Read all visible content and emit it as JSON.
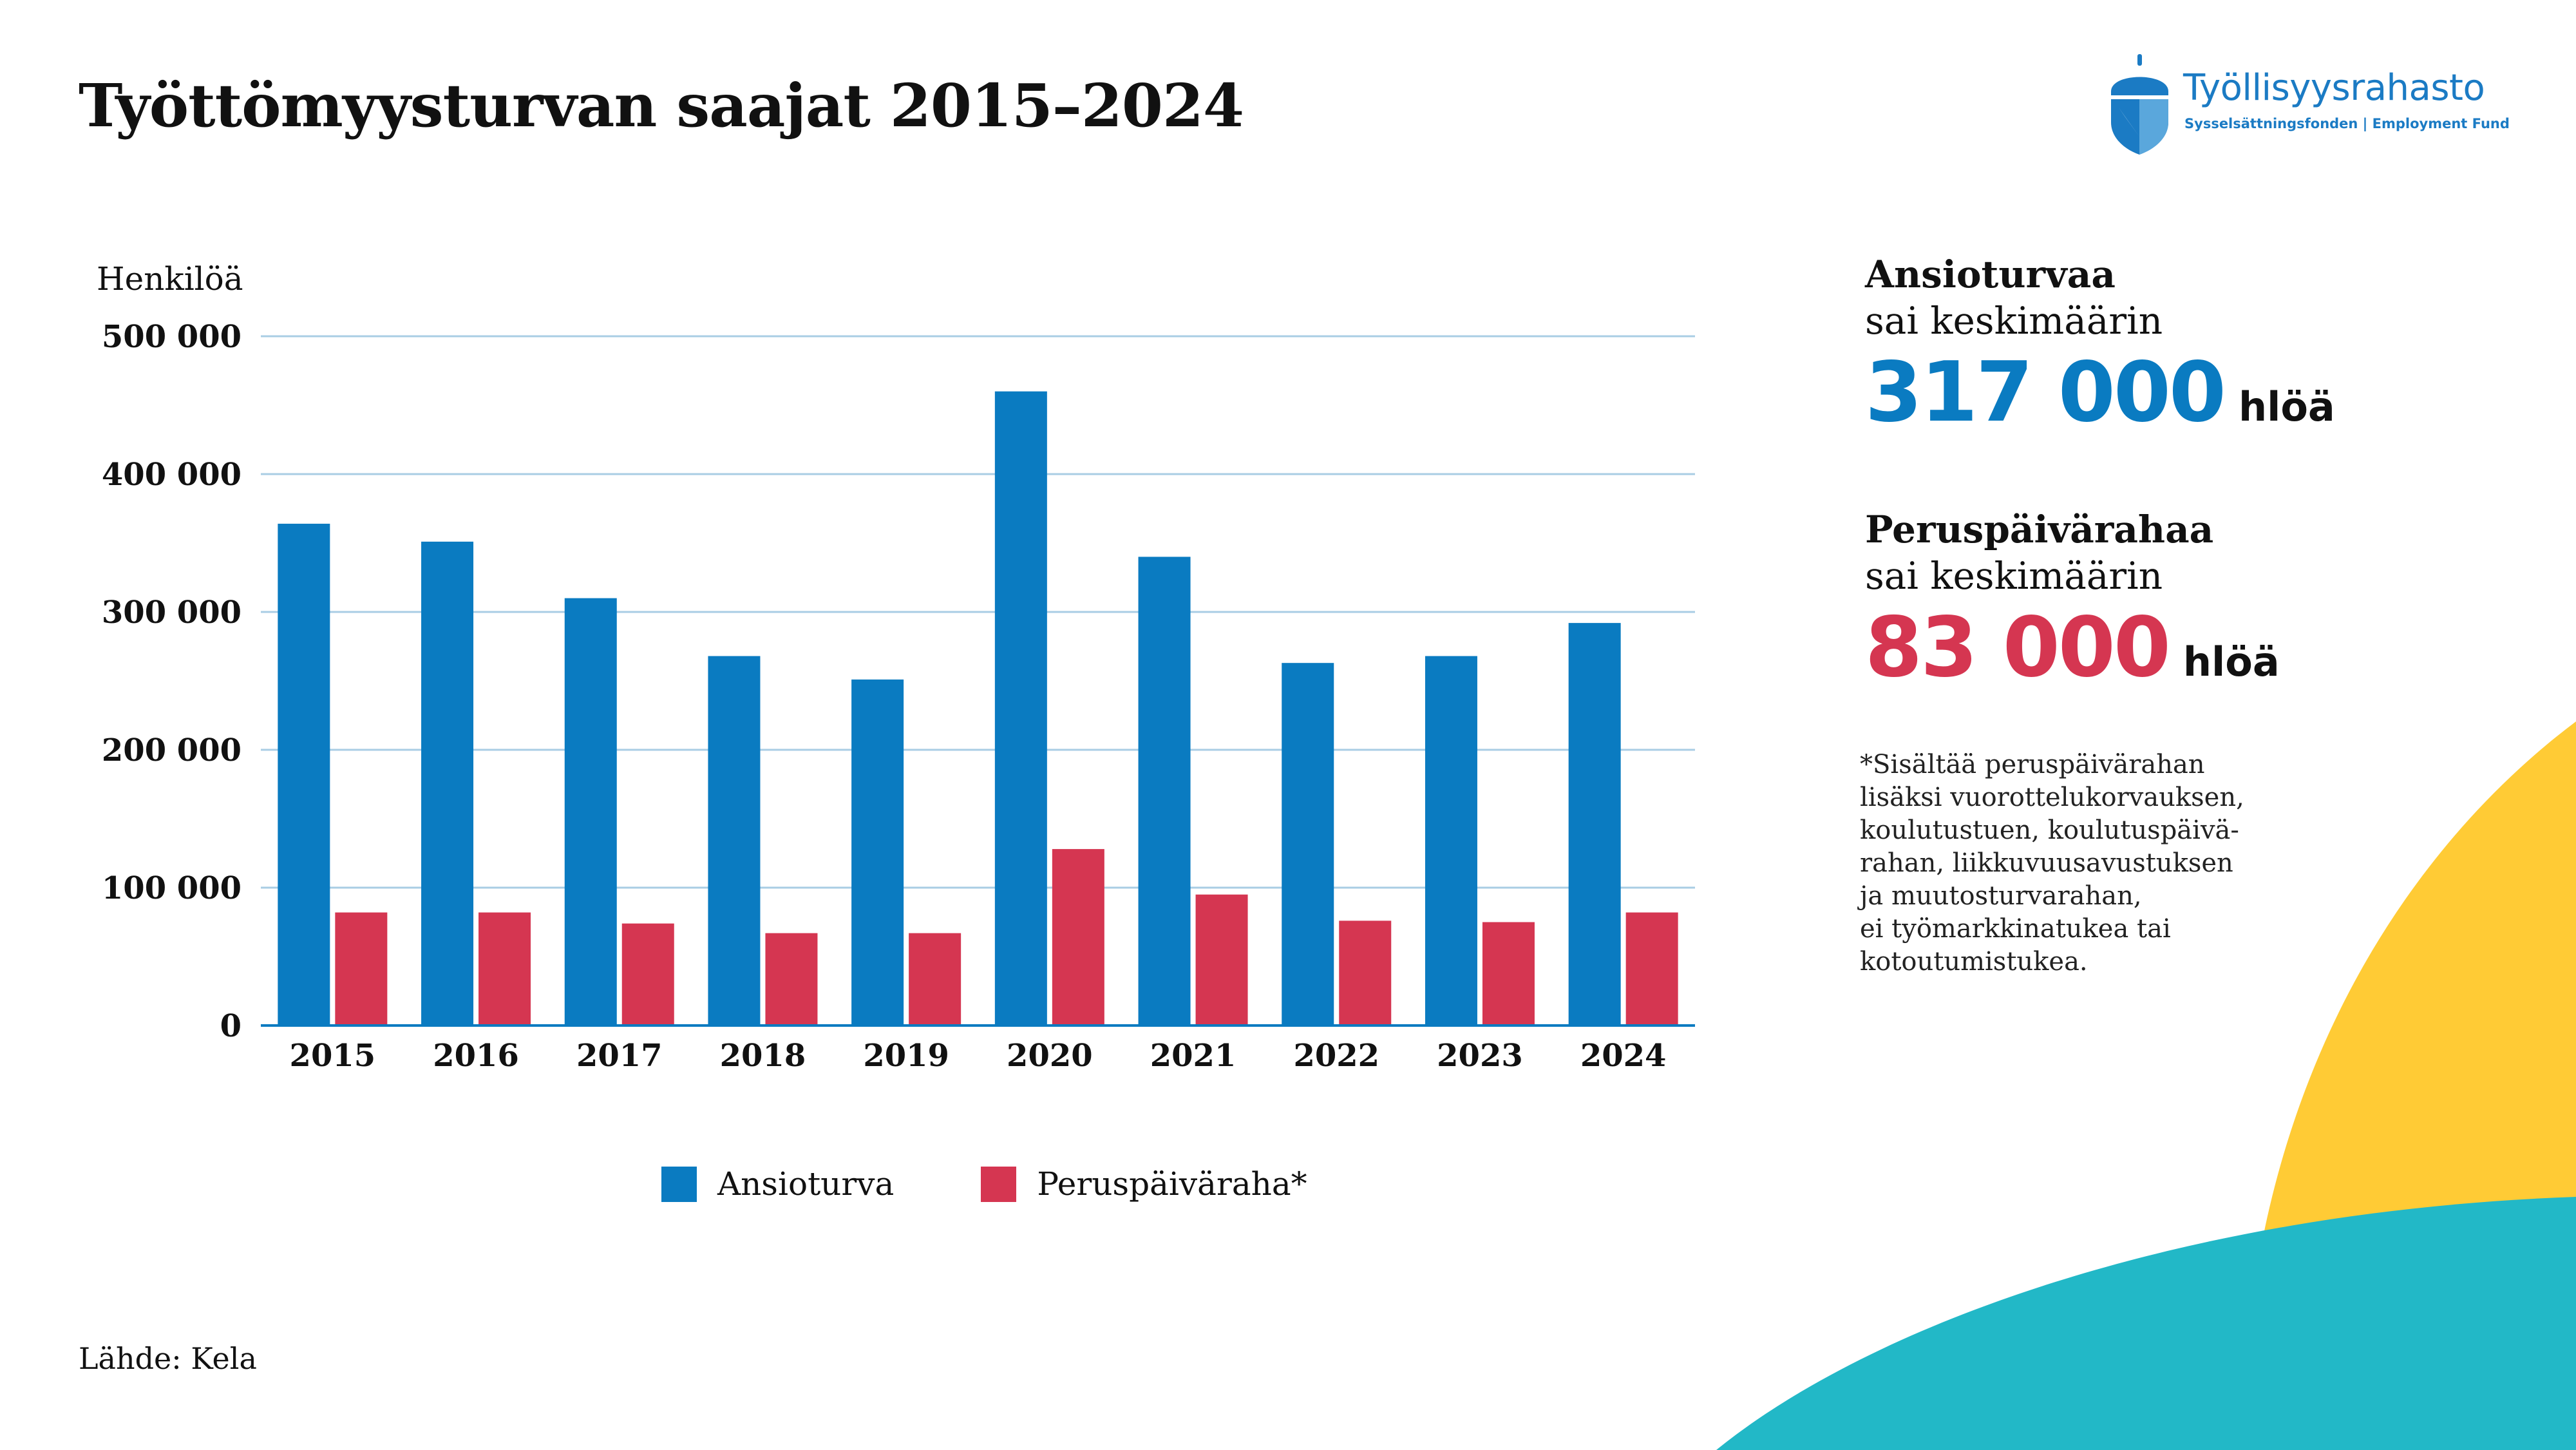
{
  "title": "Työttömyysturvan saajat 2015–2024",
  "logo": {
    "name": "Työllisyysrahasto",
    "subtitle": "Sysselsättningsfonden | Employment Fund",
    "icon": "acorn-shield-icon",
    "color": "#1b7bc4"
  },
  "colors": {
    "ansioturva": "#0a7bc1",
    "peruspaivaraha": "#d53651",
    "gridline": "#a9cde4",
    "yellow": "#ffcb35",
    "teal": "#22b8c7"
  },
  "chart_data": {
    "type": "bar",
    "ylabel": "Henkilöä",
    "categories": [
      "2015",
      "2016",
      "2017",
      "2018",
      "2019",
      "2020",
      "2021",
      "2022",
      "2023",
      "2024"
    ],
    "series": [
      {
        "name": "Ansioturva",
        "values": [
          364000,
          351000,
          310000,
          268000,
          251000,
          460000,
          340000,
          263000,
          268000,
          292000
        ]
      },
      {
        "name": "Peruspäiväraha*",
        "values": [
          82000,
          82000,
          74000,
          67000,
          67000,
          128000,
          95000,
          76000,
          75000,
          82000
        ]
      }
    ],
    "ylim": [
      0,
      500000
    ],
    "yticks": [
      0,
      100000,
      200000,
      300000,
      400000,
      500000
    ],
    "ytick_labels": [
      "0",
      "100 000",
      "200 000",
      "300 000",
      "400 000",
      "500 000"
    ],
    "grid": true,
    "legend_position": "bottom"
  },
  "stats": [
    {
      "title": "Ansioturvaa",
      "subtitle": "sai keskimäärin",
      "value": "317 000",
      "unit": "hlöä"
    },
    {
      "title": "Peruspäivärahaa",
      "subtitle": "sai keskimäärin",
      "value": "83 000",
      "unit": "hlöä"
    }
  ],
  "note_lines": [
    "*Sisältää peruspäivärahan",
    "lisäksi vuorottelukorvauksen,",
    "koulutustuen, koulutuspäivä-",
    "rahan, liikkuvuusavustuksen",
    "ja muutosturvarahan,",
    "ei työmarkkinatukea tai",
    "kotoutumistukea."
  ],
  "source": "Lähde: Kela"
}
